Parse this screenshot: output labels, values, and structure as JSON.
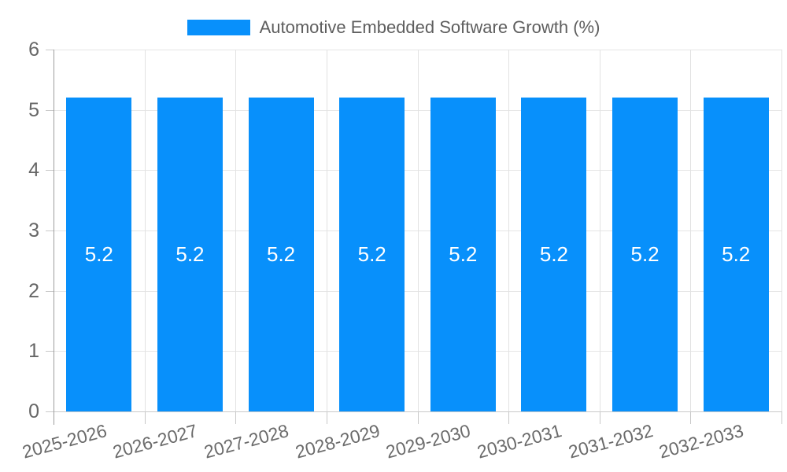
{
  "chart_data": {
    "type": "bar",
    "title": "Automotive Embedded Software Growth (%)",
    "categories": [
      "2025-2026",
      "2026-2027",
      "2027-2028",
      "2028-2029",
      "2029-2030",
      "2030-2031",
      "2031-2032",
      "2032-2033"
    ],
    "series": [
      {
        "name": "Automotive Embedded Software Growth (%)",
        "values": [
          5.2,
          5.2,
          5.2,
          5.2,
          5.2,
          5.2,
          5.2,
          5.2
        ]
      }
    ],
    "bar_value_labels": [
      "5.2",
      "5.2",
      "5.2",
      "5.2",
      "5.2",
      "5.2",
      "5.2",
      "5.2"
    ],
    "xlabel": "",
    "ylabel": "",
    "ylim": [
      0,
      6
    ],
    "yticks": [
      0,
      1,
      2,
      3,
      4,
      5,
      6
    ],
    "grid": true,
    "legend_position": "top"
  },
  "legend": {
    "label": "Automotive Embedded Software Growth (%)"
  },
  "colors": {
    "bar": "#0890fb",
    "bar_label": "#ffffff",
    "grid_h": "#e6e6e6",
    "grid_v": "#e2e2e2",
    "axis_y": "#9e9e9e",
    "axis_x": "#c9c9c9",
    "tick": "#c9c9c9",
    "y_label": "#666666",
    "x_label": "#6b6b6b",
    "legend_text": "#5e5e5e"
  }
}
